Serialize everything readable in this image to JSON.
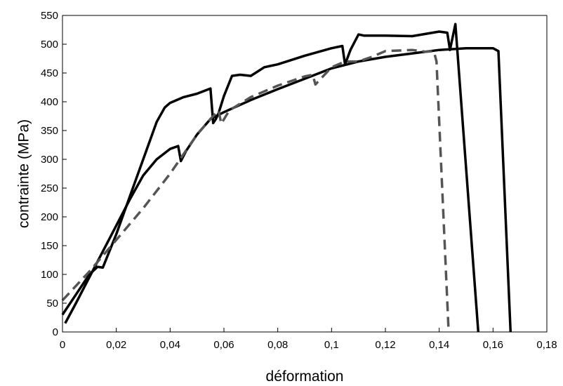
{
  "chart_data": {
    "type": "line",
    "xlabel": "déformation",
    "ylabel": "contrainte (MPa)",
    "xlim": [
      0,
      0.18
    ],
    "ylim": [
      0,
      550
    ],
    "x_ticks": [
      {
        "value": 0,
        "label": "0"
      },
      {
        "value": 0.02,
        "label": "0,02"
      },
      {
        "value": 0.04,
        "label": "0,04"
      },
      {
        "value": 0.06,
        "label": "0,06"
      },
      {
        "value": 0.08,
        "label": "0,08"
      },
      {
        "value": 0.1,
        "label": "0,1"
      },
      {
        "value": 0.12,
        "label": "0,12"
      },
      {
        "value": 0.14,
        "label": "0,14"
      },
      {
        "value": 0.16,
        "label": "0,16"
      },
      {
        "value": 0.18,
        "label": "0,18"
      }
    ],
    "y_ticks": [
      {
        "value": 0,
        "label": "0"
      },
      {
        "value": 50,
        "label": "50"
      },
      {
        "value": 100,
        "label": "100"
      },
      {
        "value": 150,
        "label": "150"
      },
      {
        "value": 200,
        "label": "200"
      },
      {
        "value": 250,
        "label": "250"
      },
      {
        "value": 300,
        "label": "300"
      },
      {
        "value": 350,
        "label": "350"
      },
      {
        "value": 400,
        "label": "400"
      },
      {
        "value": 450,
        "label": "450"
      },
      {
        "value": 500,
        "label": "500"
      },
      {
        "value": 550,
        "label": "550"
      }
    ],
    "grid": false,
    "series": [
      {
        "style": "solid",
        "color": "#000000",
        "x": [
          0.001,
          0.005,
          0.01,
          0.015,
          0.02,
          0.025,
          0.03,
          0.035,
          0.04,
          0.043,
          0.044,
          0.046,
          0.05,
          0.055,
          0.06,
          0.07,
          0.08,
          0.09,
          0.1,
          0.11,
          0.12,
          0.13,
          0.14,
          0.15,
          0.16,
          0.162,
          0.1665
        ],
        "y": [
          15,
          50,
          95,
          140,
          185,
          230,
          272,
          300,
          318,
          323,
          297,
          315,
          343,
          370,
          382,
          403,
          422,
          440,
          458,
          470,
          478,
          484,
          490,
          493,
          493,
          488,
          0
        ]
      },
      {
        "style": "solid",
        "color": "#000000",
        "x": [
          0,
          0.005,
          0.01,
          0.013,
          0.015,
          0.02,
          0.025,
          0.03,
          0.035,
          0.038,
          0.04,
          0.045,
          0.05,
          0.055,
          0.056,
          0.057,
          0.058,
          0.06,
          0.063,
          0.066,
          0.07,
          0.075,
          0.08,
          0.09,
          0.1,
          0.104,
          0.105,
          0.107,
          0.11,
          0.112,
          0.12,
          0.13,
          0.14,
          0.143,
          0.144,
          0.146,
          0.1545
        ],
        "y": [
          30,
          65,
          100,
          113,
          112,
          170,
          235,
          300,
          365,
          390,
          398,
          408,
          414,
          423,
          363,
          370,
          380,
          410,
          445,
          447,
          445,
          460,
          465,
          480,
          493,
          497,
          465,
          490,
          517,
          515,
          515,
          514,
          522,
          520,
          490,
          535,
          0
        ]
      },
      {
        "style": "dashed",
        "color": "#555555",
        "x": [
          0,
          0.01,
          0.02,
          0.03,
          0.04,
          0.05,
          0.055,
          0.058,
          0.059,
          0.062,
          0.07,
          0.075,
          0.08,
          0.09,
          0.093,
          0.094,
          0.1,
          0.105,
          0.11,
          0.115,
          0.12,
          0.13,
          0.135,
          0.138,
          0.139,
          0.1435
        ],
        "y": [
          55,
          105,
          160,
          215,
          275,
          343,
          370,
          385,
          362,
          385,
          408,
          418,
          428,
          444,
          447,
          430,
          460,
          470,
          470,
          478,
          488,
          490,
          487,
          488,
          470,
          0
        ]
      }
    ]
  }
}
